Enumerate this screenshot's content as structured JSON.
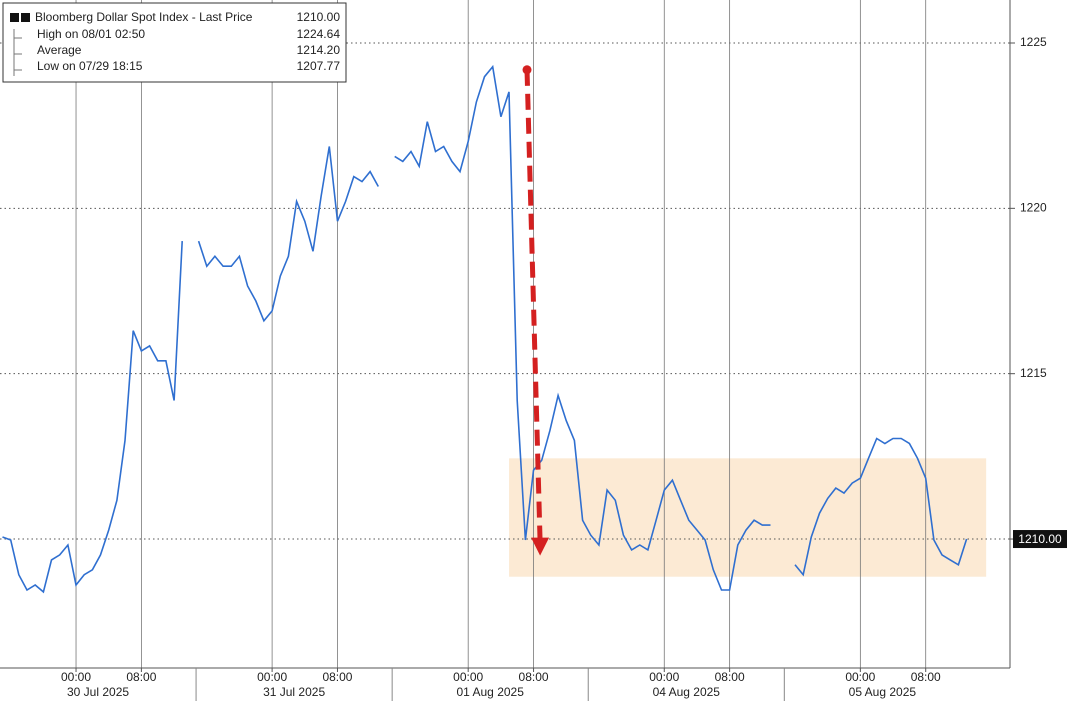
{
  "chart_data": {
    "type": "line",
    "series": [
      {
        "name": "Bloomberg Dollar Spot Index - Last Price",
        "color": "#2f6fd0",
        "values": [
          1210.06,
          1209.97,
          1208.92,
          1208.46,
          1208.61,
          1208.4,
          1209.37,
          1209.52,
          1209.82,
          1208.61,
          1208.92,
          1209.07,
          1209.52,
          1210.27,
          1211.17,
          1212.98,
          1216.3,
          1215.69,
          1215.84,
          1215.39,
          1215.39,
          1214.19,
          1219.01,
          null,
          1219.01,
          1218.25,
          1218.55,
          1218.25,
          1218.25,
          1218.55,
          1217.65,
          1217.2,
          1216.6,
          1216.9,
          1217.95,
          1218.55,
          1220.21,
          1219.61,
          1218.7,
          1220.36,
          1221.87,
          1219.61,
          1220.21,
          1220.96,
          1220.81,
          1221.11,
          1220.66,
          null,
          1221.57,
          1221.42,
          1221.72,
          1221.27,
          1222.62,
          1221.72,
          1221.87,
          1221.42,
          1221.11,
          1222.02,
          1223.22,
          1223.98,
          1224.28,
          1222.77,
          1223.52,
          1214.19,
          1209.97,
          1212.08,
          1212.38,
          1213.28,
          1214.34,
          1213.58,
          1212.98,
          1210.57,
          1210.12,
          1209.82,
          1211.48,
          1211.17,
          1210.12,
          1209.67,
          1209.82,
          1209.67,
          1210.57,
          1211.48,
          1211.78,
          1211.17,
          1210.57,
          1210.27,
          1209.97,
          1209.07,
          1208.46,
          1208.46,
          1209.82,
          1210.27,
          1210.57,
          1210.42,
          1210.42,
          null,
          null,
          1209.22,
          1208.92,
          1210.06,
          1210.78,
          1211.23,
          1211.54,
          1211.39,
          1211.69,
          1211.84,
          1212.44,
          1213.04,
          1212.89,
          1213.04,
          1213.04,
          1212.89,
          1212.44,
          1211.84,
          1209.97,
          1209.52,
          1209.37,
          1209.22,
          1210.0
        ]
      }
    ],
    "ylim": [
      1206.1,
      1226.3
    ],
    "yticks": [
      1210,
      1215,
      1220,
      1225
    ],
    "xticks": [
      {
        "value": 9,
        "label": "00:00"
      },
      {
        "value": 17,
        "label": "08:00"
      },
      {
        "value": 33,
        "label": "00:00"
      },
      {
        "value": 41,
        "label": "08:00"
      },
      {
        "value": 57,
        "label": "00:00"
      },
      {
        "value": 65,
        "label": "08:00"
      },
      {
        "value": 81,
        "label": "00:00"
      },
      {
        "value": 89,
        "label": "08:00"
      },
      {
        "value": 105,
        "label": "00:00"
      },
      {
        "value": 113,
        "label": "08:00"
      }
    ],
    "xdates": [
      "30 Jul 2025",
      "31 Jul 2025",
      "01 Aug 2025",
      "04 Aug 2025",
      "05 Aug 2025"
    ],
    "grid": true,
    "legend": [
      {
        "label": "High on 08/01 02:50",
        "value": "1224.64"
      },
      {
        "label": "Average",
        "value": "1214.20"
      },
      {
        "label": "Low on 07/29 18:15",
        "value": "1207.77"
      }
    ],
    "last_price": {
      "value": 1210,
      "label": "1210.00"
    },
    "highlight": {
      "x": [
        62,
        120.4
      ],
      "y": [
        1208.86,
        1212.44
      ],
      "color": "#fbe6cc"
    },
    "arrow": {
      "x": [
        64.2,
        65.8
      ],
      "y": [
        1224.19,
        1209.5
      ],
      "color": "#d42020"
    }
  }
}
